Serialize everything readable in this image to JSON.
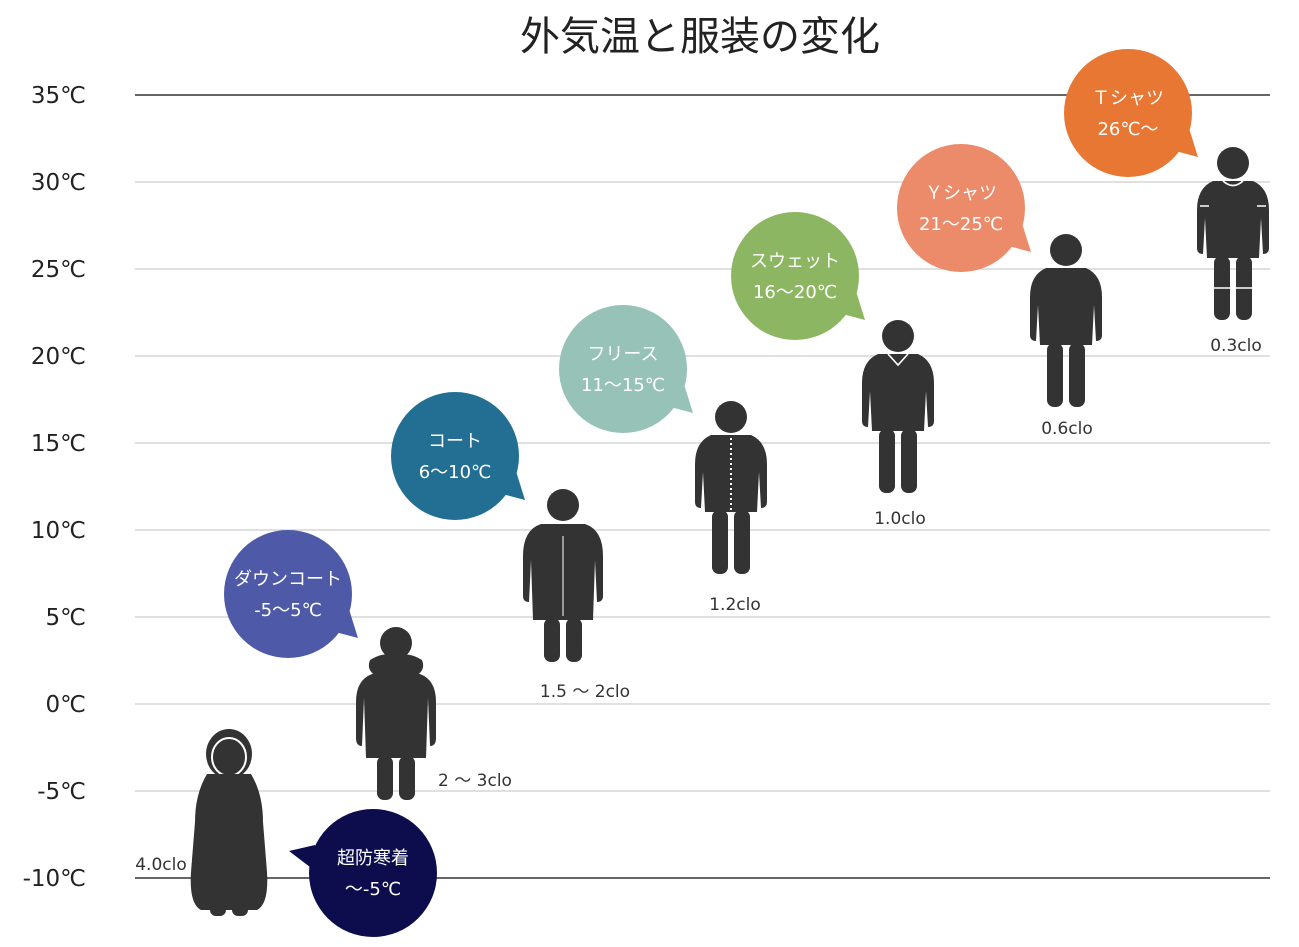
{
  "chart_data": {
    "type": "scatter",
    "title": "外気温と服装の変化",
    "ylim": [
      -10,
      35
    ],
    "y_ticks": [
      35,
      30,
      25,
      20,
      15,
      10,
      5,
      0,
      -5,
      -10
    ],
    "y_tick_labels": [
      "35℃",
      "30℃",
      "25℃",
      "20℃",
      "15℃",
      "10℃",
      "5℃",
      "0℃",
      "-5℃",
      "-10℃"
    ],
    "grid": true,
    "items": [
      {
        "id": "extreme-cold",
        "clothing": "超防寒着",
        "temperature": "～-5℃",
        "clo": "4.0clo",
        "y": -10,
        "color": "#0d0d4d"
      },
      {
        "id": "down-coat",
        "clothing": "ダウンコート",
        "temperature": "-5～5℃",
        "clo": "2 ～ 3clo",
        "y": -5,
        "color": "#4e5aa8"
      },
      {
        "id": "coat",
        "clothing": "コート",
        "temperature": "6～10℃",
        "clo": "1.5 ～ 2clo",
        "y": 0,
        "color": "#236f93"
      },
      {
        "id": "fleece",
        "clothing": "フリース",
        "temperature": "11～15℃",
        "clo": "1.2clo",
        "y": 5,
        "color": "#96c2b8"
      },
      {
        "id": "sweat",
        "clothing": "スウェット",
        "temperature": "16～20℃",
        "clo": "1.0clo",
        "y": 10,
        "color": "#8db662"
      },
      {
        "id": "y-shirt",
        "clothing": "Ｙシャツ",
        "temperature": "21～25℃",
        "clo": "0.6clo",
        "y": 15,
        "color": "#ec8b6a"
      },
      {
        "id": "t-shirt",
        "clothing": "Ｔシャツ",
        "temperature": "26℃～",
        "clo": "0.3clo",
        "y": 20,
        "color": "#e87733"
      }
    ]
  }
}
